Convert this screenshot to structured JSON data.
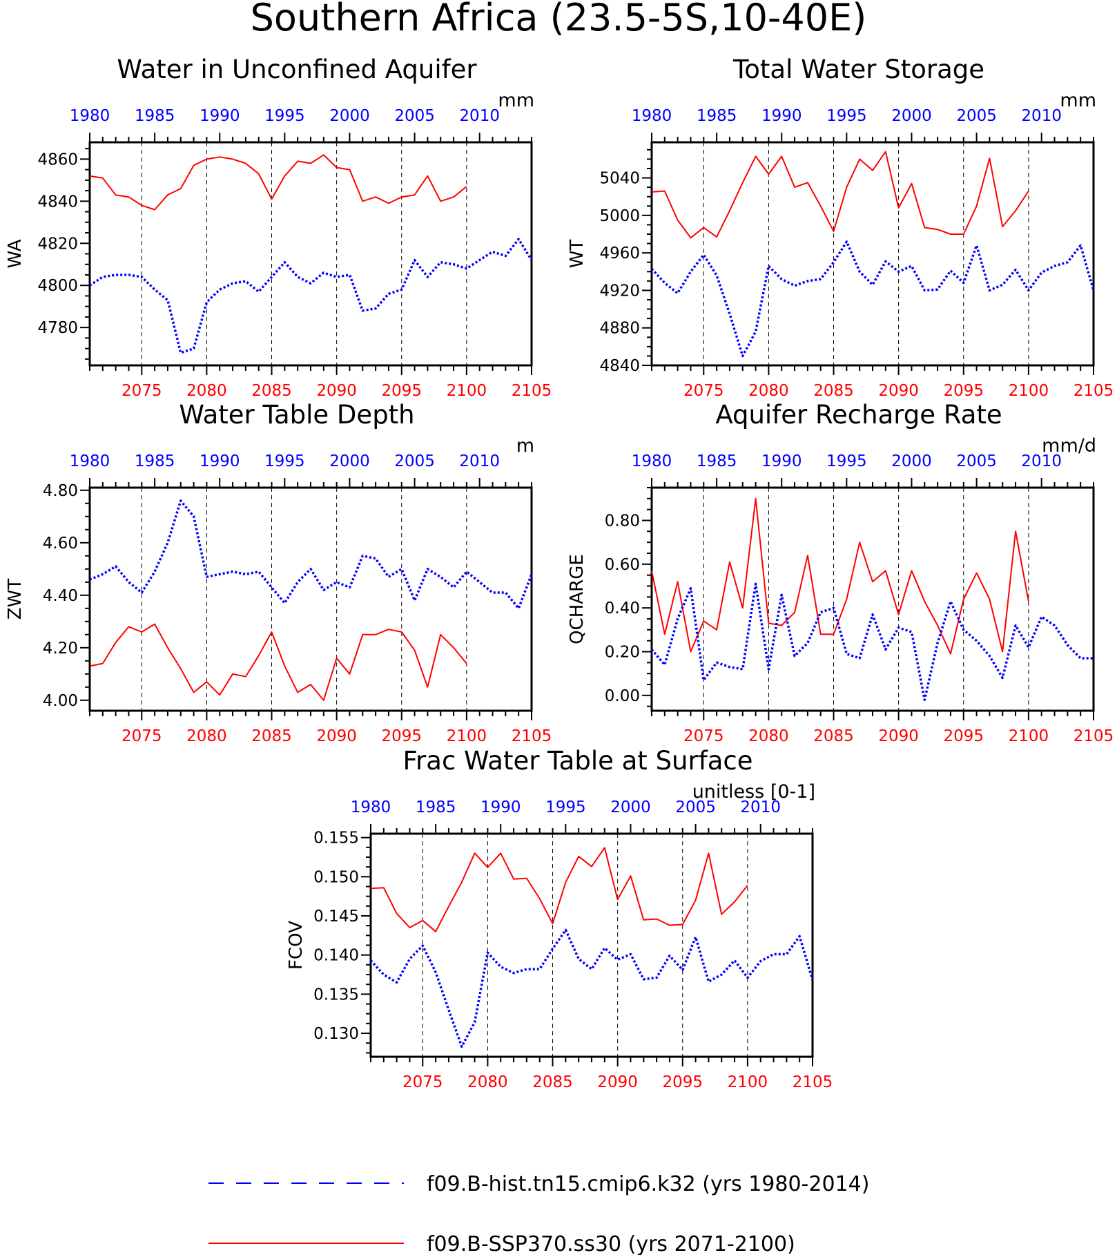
{
  "title": "Southern Africa (23.5-5S,10-40E)",
  "colors": {
    "hist": "#0000ff",
    "ssp": "#ff0000",
    "axis": "#000000"
  },
  "legend": [
    {
      "key": "hist",
      "label": "f09.B-hist.tn15.cmip6.k32 (yrs 1980-2014)",
      "style": "dashed",
      "color": "#0000ff"
    },
    {
      "key": "ssp",
      "label": "f09.B-SSP370.ss30 (yrs 2071-2100)",
      "style": "solid",
      "color": "#ff0000"
    }
  ],
  "chart_data": [
    {
      "type": "line",
      "title": "Water in Unconfined Aquifer",
      "ylabel": "WA",
      "units": "mm",
      "ylim": [
        4762,
        4868
      ],
      "yticks": [
        4780,
        4800,
        4820,
        4840,
        4860
      ],
      "ytick_labels": [
        "4780",
        "4800",
        "4820",
        "4840",
        "4860"
      ],
      "bottom_axis": {
        "label_ticks": [
          2075,
          2080,
          2085,
          2090,
          2095,
          2100,
          2105
        ],
        "range": [
          2071,
          2105
        ]
      },
      "top_axis": {
        "label_ticks": [
          1980,
          1985,
          1990,
          1995,
          2000,
          2005,
          2010
        ],
        "range": [
          1980,
          2014
        ]
      },
      "series": [
        {
          "key": "ssp",
          "x_start": 2071,
          "values": [
            4852,
            4851,
            4843,
            4842,
            4838,
            4836,
            4843,
            4846,
            4857,
            4860,
            4861,
            4860,
            4858,
            4853,
            4841,
            4852,
            4859,
            4858,
            4862,
            4856,
            4855,
            4840,
            4842,
            4839,
            4842,
            4843,
            4852,
            4840,
            4842,
            4847
          ]
        },
        {
          "key": "hist",
          "x_start": 1980,
          "values": [
            4800,
            4804,
            4805,
            4805,
            4804,
            4798,
            4793,
            4768,
            4770,
            4792,
            4798,
            4801,
            4802,
            4797,
            4804,
            4811,
            4804,
            4801,
            4806,
            4804,
            4805,
            4788,
            4789,
            4796,
            4798,
            4812,
            4804,
            4811,
            4810,
            4808,
            4812,
            4816,
            4814,
            4822,
            4812
          ]
        }
      ]
    },
    {
      "type": "line",
      "title": "Total Water Storage",
      "ylabel": "WT",
      "units": "mm",
      "ylim": [
        4840,
        5078
      ],
      "yticks": [
        4840,
        4880,
        4920,
        4960,
        5000,
        5040
      ],
      "ytick_labels": [
        "4840",
        "4880",
        "4920",
        "4960",
        "5000",
        "5040"
      ],
      "bottom_axis": {
        "label_ticks": [
          2075,
          2080,
          2085,
          2090,
          2095,
          2100,
          2105
        ],
        "range": [
          2071,
          2105
        ]
      },
      "top_axis": {
        "label_ticks": [
          1980,
          1985,
          1990,
          1995,
          2000,
          2005,
          2010
        ],
        "range": [
          1980,
          2014
        ]
      },
      "series": [
        {
          "key": "ssp",
          "x_start": 2071,
          "values": [
            5025,
            5026,
            4995,
            4976,
            4987,
            4977,
            5005,
            5035,
            5063,
            5044,
            5063,
            5030,
            5035,
            5010,
            4983,
            5030,
            5060,
            5048,
            5068,
            5008,
            5034,
            4987,
            4985,
            4980,
            4980,
            5010,
            5061,
            4988,
            5005,
            5026
          ]
        },
        {
          "key": "hist",
          "x_start": 1980,
          "values": [
            4943,
            4928,
            4917,
            4940,
            4958,
            4936,
            4895,
            4850,
            4876,
            4946,
            4932,
            4925,
            4930,
            4932,
            4950,
            4972,
            4940,
            4926,
            4951,
            4940,
            4946,
            4920,
            4921,
            4941,
            4928,
            4968,
            4920,
            4926,
            4942,
            4920,
            4939,
            4946,
            4950,
            4968,
            4920
          ]
        }
      ]
    },
    {
      "type": "line",
      "title": "Water Table Depth",
      "ylabel": "ZWT",
      "units": "m",
      "ylim": [
        3.96,
        4.81
      ],
      "yticks": [
        4.0,
        4.2,
        4.4,
        4.6,
        4.8
      ],
      "ytick_labels": [
        "4.00",
        "4.20",
        "4.40",
        "4.60",
        "4.80"
      ],
      "bottom_axis": {
        "label_ticks": [
          2075,
          2080,
          2085,
          2090,
          2095,
          2100,
          2105
        ],
        "range": [
          2071,
          2105
        ]
      },
      "top_axis": {
        "label_ticks": [
          1980,
          1985,
          1990,
          1995,
          2000,
          2005,
          2010
        ],
        "range": [
          1980,
          2014
        ]
      },
      "series": [
        {
          "key": "ssp",
          "x_start": 2071,
          "values": [
            4.13,
            4.14,
            4.22,
            4.28,
            4.26,
            4.29,
            4.2,
            4.12,
            4.03,
            4.07,
            4.02,
            4.1,
            4.09,
            4.17,
            4.26,
            4.13,
            4.03,
            4.06,
            4.0,
            4.16,
            4.1,
            4.25,
            4.25,
            4.27,
            4.26,
            4.19,
            4.05,
            4.25,
            4.2,
            4.14
          ]
        },
        {
          "key": "hist",
          "x_start": 1980,
          "values": [
            4.46,
            4.48,
            4.51,
            4.45,
            4.41,
            4.49,
            4.6,
            4.76,
            4.7,
            4.47,
            4.48,
            4.49,
            4.48,
            4.49,
            4.43,
            4.37,
            4.45,
            4.5,
            4.42,
            4.45,
            4.43,
            4.55,
            4.54,
            4.47,
            4.5,
            4.38,
            4.5,
            4.47,
            4.43,
            4.49,
            4.45,
            4.41,
            4.41,
            4.35,
            4.48
          ]
        }
      ]
    },
    {
      "type": "line",
      "title": "Aquifer Recharge Rate",
      "ylabel": "QCHARGE",
      "units": "mm/d",
      "ylim": [
        -0.07,
        0.95
      ],
      "yticks": [
        0.0,
        0.2,
        0.4,
        0.6,
        0.8
      ],
      "ytick_labels": [
        "0.00",
        "0.20",
        "0.40",
        "0.60",
        "0.80"
      ],
      "bottom_axis": {
        "label_ticks": [
          2075,
          2080,
          2085,
          2090,
          2095,
          2100,
          2105
        ],
        "range": [
          2071,
          2105
        ]
      },
      "top_axis": {
        "label_ticks": [
          1980,
          1985,
          1990,
          1995,
          2000,
          2005,
          2010
        ],
        "range": [
          1980,
          2014
        ]
      },
      "series": [
        {
          "key": "ssp",
          "x_start": 2071,
          "values": [
            0.57,
            0.28,
            0.52,
            0.2,
            0.34,
            0.3,
            0.61,
            0.4,
            0.9,
            0.33,
            0.32,
            0.38,
            0.64,
            0.28,
            0.28,
            0.44,
            0.7,
            0.52,
            0.57,
            0.37,
            0.57,
            0.43,
            0.32,
            0.19,
            0.44,
            0.56,
            0.44,
            0.2,
            0.75,
            0.43
          ]
        },
        {
          "key": "hist",
          "x_start": 1980,
          "values": [
            0.21,
            0.14,
            0.35,
            0.49,
            0.07,
            0.15,
            0.13,
            0.12,
            0.51,
            0.12,
            0.46,
            0.18,
            0.24,
            0.38,
            0.4,
            0.19,
            0.17,
            0.37,
            0.21,
            0.31,
            0.29,
            -0.02,
            0.24,
            0.43,
            0.3,
            0.25,
            0.18,
            0.08,
            0.32,
            0.22,
            0.36,
            0.32,
            0.23,
            0.17,
            0.17
          ]
        }
      ]
    },
    {
      "type": "line",
      "title": "Frac Water Table at Surface",
      "ylabel": "FCOV",
      "units": "unitless [0-1]",
      "ylim": [
        0.127,
        0.1555
      ],
      "yticks": [
        0.13,
        0.135,
        0.14,
        0.145,
        0.15,
        0.155
      ],
      "ytick_labels": [
        "0.130",
        "0.135",
        "0.140",
        "0.145",
        "0.150",
        "0.155"
      ],
      "bottom_axis": {
        "label_ticks": [
          2075,
          2080,
          2085,
          2090,
          2095,
          2100,
          2105
        ],
        "range": [
          2071,
          2105
        ]
      },
      "top_axis": {
        "label_ticks": [
          1980,
          1985,
          1990,
          1995,
          2000,
          2005,
          2010
        ],
        "range": [
          1980,
          2014
        ]
      },
      "series": [
        {
          "key": "ssp",
          "x_start": 2071,
          "values": [
            0.1485,
            0.1486,
            0.1453,
            0.1435,
            0.1444,
            0.143,
            0.1462,
            0.1493,
            0.153,
            0.1512,
            0.153,
            0.1497,
            0.1498,
            0.1472,
            0.144,
            0.1493,
            0.1526,
            0.1513,
            0.1537,
            0.1471,
            0.1501,
            0.1445,
            0.1446,
            0.1438,
            0.1439,
            0.147,
            0.153,
            0.1452,
            0.1468,
            0.1489
          ]
        },
        {
          "key": "hist",
          "x_start": 1980,
          "values": [
            0.1393,
            0.1375,
            0.1365,
            0.1395,
            0.1412,
            0.1378,
            0.133,
            0.1283,
            0.1314,
            0.1403,
            0.1385,
            0.1377,
            0.1382,
            0.1382,
            0.1408,
            0.1432,
            0.1395,
            0.1382,
            0.1409,
            0.1394,
            0.1401,
            0.1369,
            0.1371,
            0.1399,
            0.1381,
            0.1423,
            0.1366,
            0.1375,
            0.1393,
            0.1371,
            0.1392,
            0.1401,
            0.1401,
            0.1424,
            0.1368
          ]
        }
      ]
    }
  ]
}
